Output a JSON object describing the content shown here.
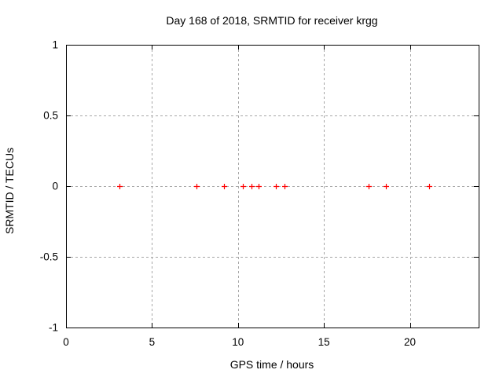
{
  "page": {
    "background": "#ffffff"
  },
  "chart_data": {
    "type": "scatter",
    "title": "Day 168 of 2018, SRMTID for receiver krgg",
    "xlabel": "GPS time / hours",
    "ylabel": "SRMTID / TECUs",
    "xlim": [
      0,
      24
    ],
    "ylim": [
      -1,
      1
    ],
    "grid": true,
    "legend": "none",
    "x_ticks": [
      {
        "value": 0,
        "label": "0"
      },
      {
        "value": 5,
        "label": "5"
      },
      {
        "value": 10,
        "label": "10"
      },
      {
        "value": 15,
        "label": "15"
      },
      {
        "value": 20,
        "label": "20"
      }
    ],
    "y_ticks": [
      {
        "value": 1,
        "label": "1"
      },
      {
        "value": 0.5,
        "label": "0.5"
      },
      {
        "value": 0,
        "label": "0"
      },
      {
        "value": -0.5,
        "label": "-0.5"
      },
      {
        "value": -1,
        "label": "-1"
      }
    ],
    "series": [
      {
        "name": "SRMTID",
        "marker": "plus",
        "color": "#ff0000",
        "points": [
          {
            "x": 3.1,
            "y": 0
          },
          {
            "x": 7.6,
            "y": 0
          },
          {
            "x": 9.2,
            "y": 0
          },
          {
            "x": 10.3,
            "y": 0
          },
          {
            "x": 10.8,
            "y": 0
          },
          {
            "x": 11.2,
            "y": 0
          },
          {
            "x": 12.2,
            "y": 0
          },
          {
            "x": 12.7,
            "y": 0
          },
          {
            "x": 17.6,
            "y": 0
          },
          {
            "x": 18.6,
            "y": 0
          },
          {
            "x": 21.1,
            "y": 0
          }
        ]
      }
    ],
    "colors": {
      "axis": "#000000",
      "grid": "#a6a6a6",
      "marker": "#ff0000",
      "text": "#000000",
      "background": "#ffffff"
    }
  }
}
